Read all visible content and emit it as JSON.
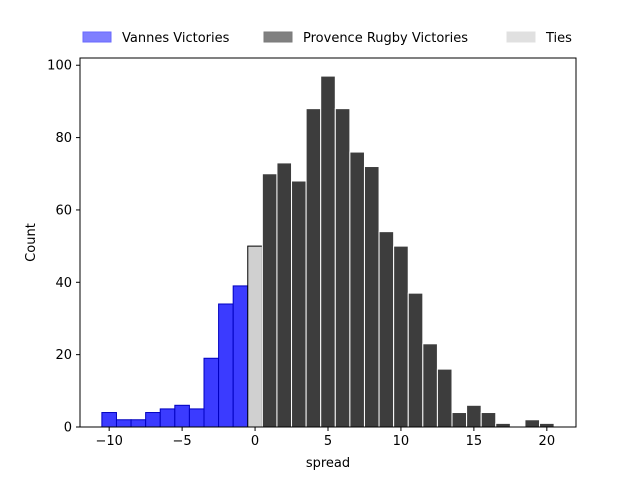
{
  "chart_data": {
    "type": "bar",
    "xlabel": "spread",
    "ylabel": "Count",
    "xlim": [
      -12,
      22
    ],
    "ylim": [
      0,
      102
    ],
    "xticks": [
      -10,
      -5,
      0,
      5,
      10,
      15,
      20
    ],
    "yticks": [
      0,
      20,
      40,
      60,
      80,
      100
    ],
    "grid": false,
    "legend_position": "top, outside plot, single row",
    "legend": [
      {
        "label": "Vannes Victories",
        "color": "#0000ff"
      },
      {
        "label": "Provence Rugby Victories",
        "color": "#000000"
      },
      {
        "label": "Ties",
        "color": "#c8c8c8"
      }
    ],
    "bin_width": 1,
    "series": [
      {
        "name": "Vannes Victories",
        "color": "#0000ff",
        "bins": [
          {
            "x": -10,
            "count": 4
          },
          {
            "x": -9,
            "count": 2
          },
          {
            "x": -8,
            "count": 2
          },
          {
            "x": -7,
            "count": 4
          },
          {
            "x": -6,
            "count": 5
          },
          {
            "x": -5,
            "count": 6
          },
          {
            "x": -4,
            "count": 5
          },
          {
            "x": -3,
            "count": 19
          },
          {
            "x": -2,
            "count": 34
          },
          {
            "x": -1,
            "count": 39
          }
        ]
      },
      {
        "name": "Ties",
        "color": "#c8c8c8",
        "bins": [
          {
            "x": 0,
            "count": 50
          }
        ]
      },
      {
        "name": "Provence Rugby Victories",
        "color": "#000000",
        "bins": [
          {
            "x": 1,
            "count": 70
          },
          {
            "x": 2,
            "count": 73
          },
          {
            "x": 3,
            "count": 68
          },
          {
            "x": 4,
            "count": 88
          },
          {
            "x": 5,
            "count": 97
          },
          {
            "x": 6,
            "count": 88
          },
          {
            "x": 7,
            "count": 76
          },
          {
            "x": 8,
            "count": 72
          },
          {
            "x": 9,
            "count": 54
          },
          {
            "x": 10,
            "count": 50
          },
          {
            "x": 11,
            "count": 37
          },
          {
            "x": 12,
            "count": 23
          },
          {
            "x": 13,
            "count": 16
          },
          {
            "x": 14,
            "count": 4
          },
          {
            "x": 15,
            "count": 6
          },
          {
            "x": 16,
            "count": 4
          },
          {
            "x": 17,
            "count": 1
          },
          {
            "x": 18,
            "count": 0
          },
          {
            "x": 19,
            "count": 2
          },
          {
            "x": 20,
            "count": 1
          }
        ]
      }
    ]
  }
}
